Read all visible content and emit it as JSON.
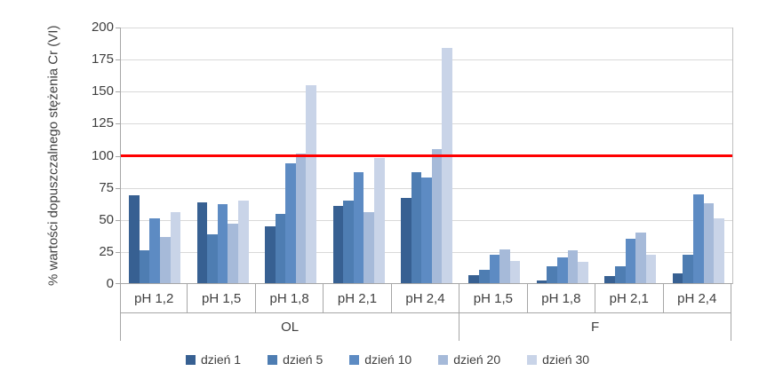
{
  "chart_data": {
    "type": "bar",
    "title": "",
    "ylabel": "% wartości dopuszczalnego stężenia Cr (VI)",
    "xlabel": "",
    "ylim": [
      0,
      200
    ],
    "ytick_step": 25,
    "grid": true,
    "legend_position": "bottom",
    "reference_line": {
      "value": 100,
      "color": "#ff0000"
    },
    "series": [
      {
        "name": "dzień 1",
        "color": "#376092"
      },
      {
        "name": "dzień 5",
        "color": "#4e7db2"
      },
      {
        "name": "dzień 10",
        "color": "#5d8bc3"
      },
      {
        "name": "dzień 20",
        "color": "#a6bad9"
      },
      {
        "name": "dzień 30",
        "color": "#c9d4e8"
      }
    ],
    "sections": [
      {
        "label": "OL",
        "groups": [
          {
            "label": "pH 1,2",
            "values": [
              69,
              26,
              51,
              37,
              56
            ]
          },
          {
            "label": "pH 1,5",
            "values": [
              64,
              39,
              62,
              47,
              65
            ]
          },
          {
            "label": "pH 1,8",
            "values": [
              45,
              55,
              94,
              102,
              155
            ]
          },
          {
            "label": "pH 2,1",
            "values": [
              61,
              65,
              87,
              56,
              98
            ]
          },
          {
            "label": "pH 2,4",
            "values": [
              67,
              87,
              83,
              105,
              184
            ]
          }
        ]
      },
      {
        "label": "F",
        "groups": [
          {
            "label": "pH 1,5",
            "values": [
              7,
              11,
              23,
              27,
              18
            ]
          },
          {
            "label": "pH 1,8",
            "values": [
              3,
              14,
              21,
              26,
              17
            ]
          },
          {
            "label": "pH 2,1",
            "values": [
              6,
              14,
              35,
              40,
              23
            ]
          },
          {
            "label": "pH 2,4",
            "values": [
              8,
              23,
              70,
              63,
              51
            ]
          }
        ]
      }
    ]
  }
}
